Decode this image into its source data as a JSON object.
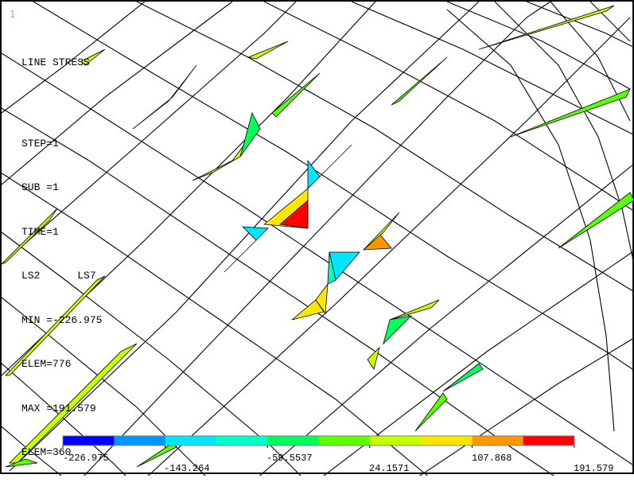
{
  "window_number": "1",
  "info": {
    "title": "LINE STRESS",
    "step": "STEP=1",
    "sub": "SUB =1",
    "time": "TIME=1",
    "ls": "LS2      LS7",
    "min": "MIN =-226.975",
    "min_elem": "ELEM=776",
    "max": "MAX =191.579",
    "max_elem": "ELEM=360"
  },
  "colors": {
    "background": "#ffffff",
    "mesh": "#000000",
    "contour_bands": [
      "#0000ff",
      "#0096ff",
      "#00e6ff",
      "#00ffc8",
      "#00ff5a",
      "#5aff00",
      "#c8ff00",
      "#ffe600",
      "#ff9600",
      "#ff0000"
    ]
  },
  "legend": {
    "labels": [
      "-226.975",
      "-143.264",
      "-59.5537",
      "24.1571",
      "107.868",
      "191.579"
    ]
  }
}
